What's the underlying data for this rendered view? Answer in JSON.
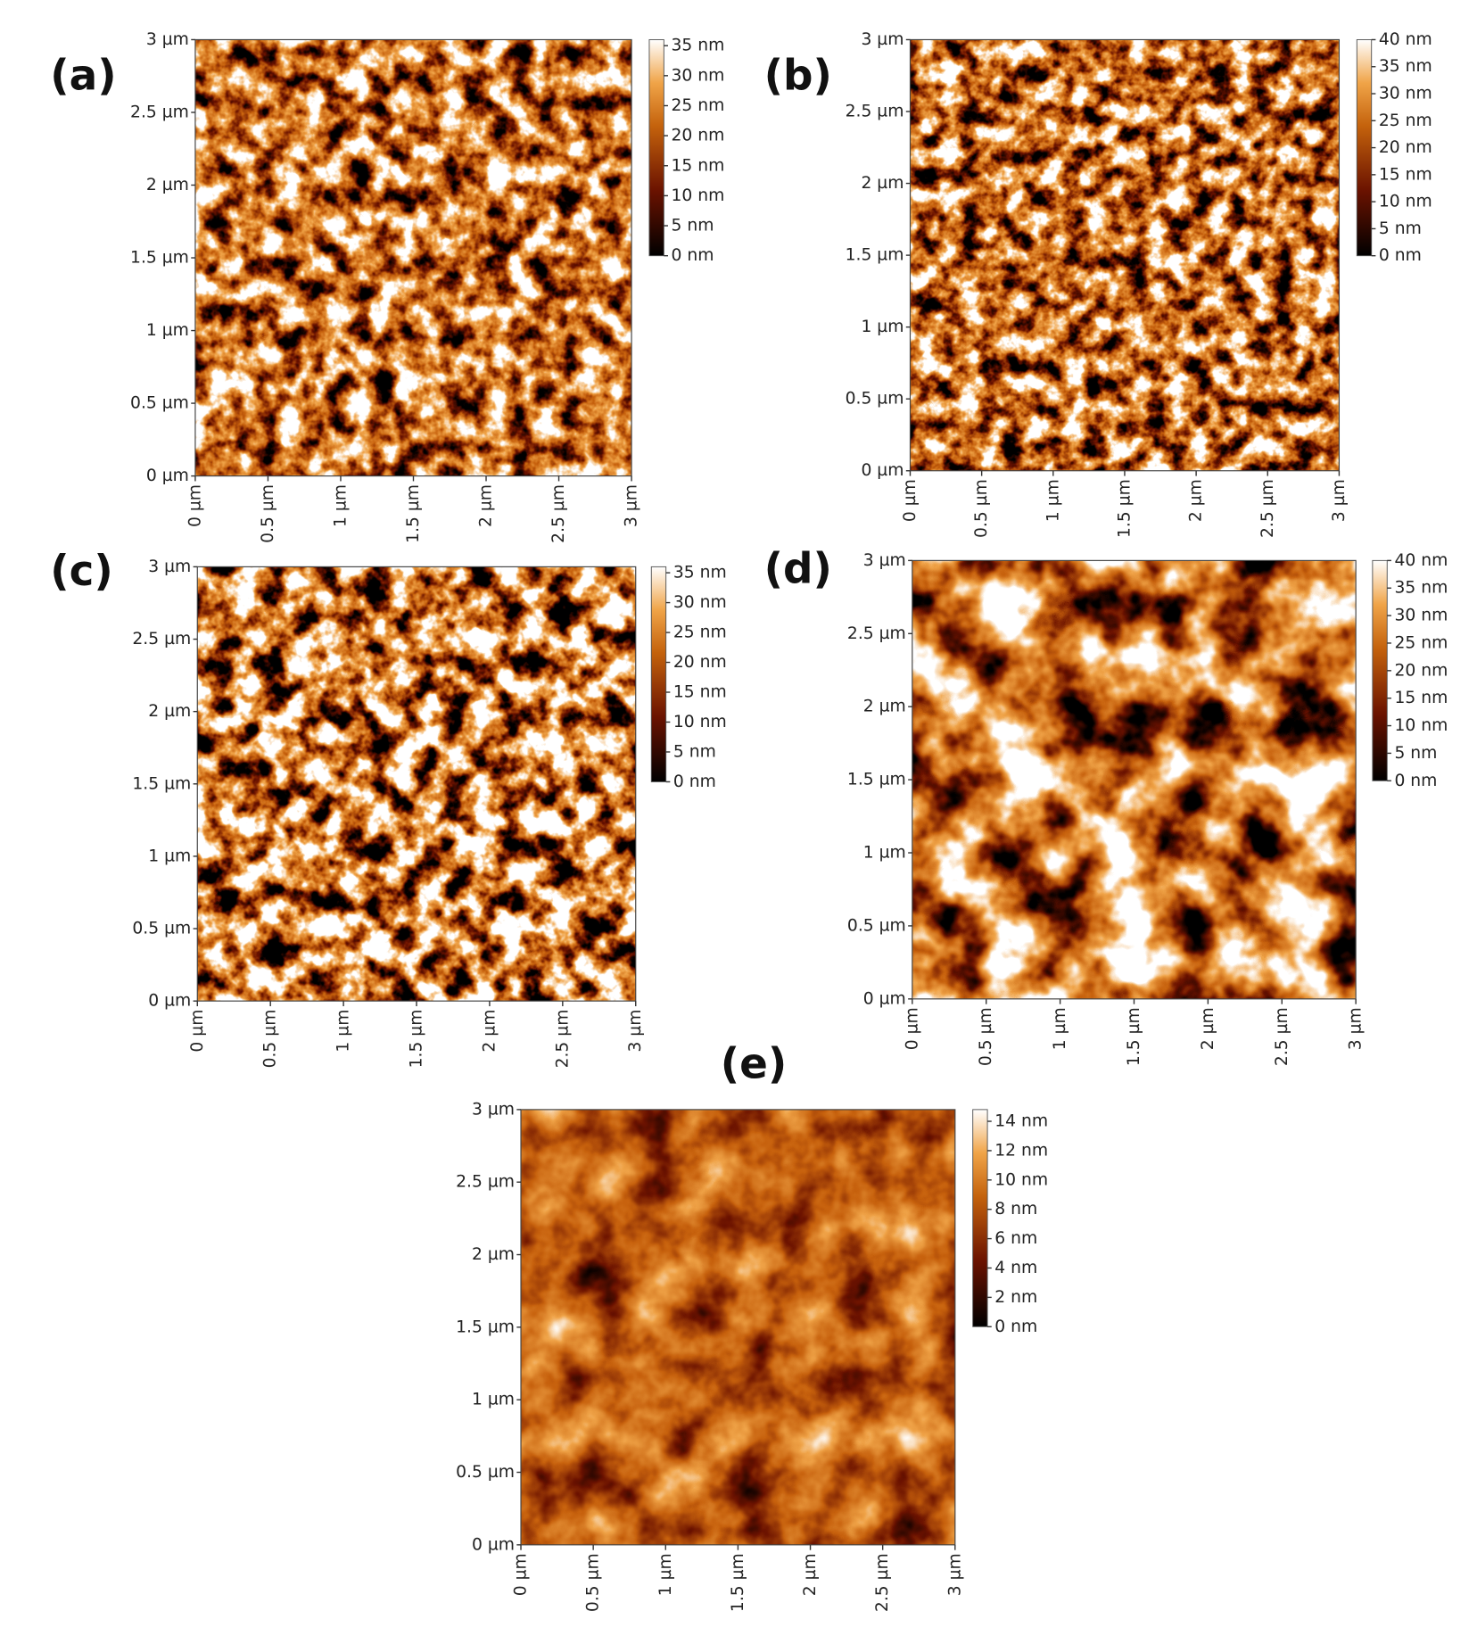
{
  "chart_data": [
    {
      "type": "heatmap",
      "label": "(a)",
      "xlim": [
        0,
        3
      ],
      "ylim": [
        0,
        3
      ],
      "xticks": [
        {
          "value": 0,
          "label": "0 µm"
        },
        {
          "value": 0.5,
          "label": "0.5 µm"
        },
        {
          "value": 1,
          "label": "1 µm"
        },
        {
          "value": 1.5,
          "label": "1.5 µm"
        },
        {
          "value": 2,
          "label": "2 µm"
        },
        {
          "value": 2.5,
          "label": "2.5 µm"
        },
        {
          "value": 3,
          "label": "3 µm"
        }
      ],
      "yticks": [
        {
          "value": 0,
          "label": "0 µm"
        },
        {
          "value": 0.5,
          "label": "0.5 µm"
        },
        {
          "value": 1,
          "label": "1 µm"
        },
        {
          "value": 1.5,
          "label": "1.5 µm"
        },
        {
          "value": 2,
          "label": "2 µm"
        },
        {
          "value": 2.5,
          "label": "2.5 µm"
        },
        {
          "value": 3,
          "label": "3 µm"
        }
      ],
      "clim": [
        0,
        36
      ],
      "cticks": [
        {
          "value": 0,
          "label": "0 nm"
        },
        {
          "value": 5,
          "label": "5 nm"
        },
        {
          "value": 10,
          "label": "10 nm"
        },
        {
          "value": 15,
          "label": "15 nm"
        },
        {
          "value": 20,
          "label": "20 nm"
        },
        {
          "value": 25,
          "label": "25 nm"
        },
        {
          "value": 30,
          "label": "30 nm"
        },
        {
          "value": 35,
          "label": "35 nm"
        }
      ]
    },
    {
      "type": "heatmap",
      "label": "(b)",
      "xlim": [
        0,
        3
      ],
      "ylim": [
        0,
        3
      ],
      "xticks": [
        {
          "value": 0,
          "label": "0 µm"
        },
        {
          "value": 0.5,
          "label": "0.5 µm"
        },
        {
          "value": 1,
          "label": "1 µm"
        },
        {
          "value": 1.5,
          "label": "1.5 µm"
        },
        {
          "value": 2,
          "label": "2 µm"
        },
        {
          "value": 2.5,
          "label": "2.5 µm"
        },
        {
          "value": 3,
          "label": "3 µm"
        }
      ],
      "yticks": [
        {
          "value": 0,
          "label": "0 µm"
        },
        {
          "value": 0.5,
          "label": "0.5 µm"
        },
        {
          "value": 1,
          "label": "1 µm"
        },
        {
          "value": 1.5,
          "label": "1.5 µm"
        },
        {
          "value": 2,
          "label": "2 µm"
        },
        {
          "value": 2.5,
          "label": "2.5 µm"
        },
        {
          "value": 3,
          "label": "3 µm"
        }
      ],
      "clim": [
        0,
        40
      ],
      "cticks": [
        {
          "value": 0,
          "label": "0 nm"
        },
        {
          "value": 5,
          "label": "5 nm"
        },
        {
          "value": 10,
          "label": "10 nm"
        },
        {
          "value": 15,
          "label": "15 nm"
        },
        {
          "value": 20,
          "label": "20 nm"
        },
        {
          "value": 25,
          "label": "25 nm"
        },
        {
          "value": 30,
          "label": "30 nm"
        },
        {
          "value": 35,
          "label": "35 nm"
        },
        {
          "value": 40,
          "label": "40 nm"
        }
      ]
    },
    {
      "type": "heatmap",
      "label": "(c)",
      "xlim": [
        0,
        3
      ],
      "ylim": [
        0,
        3
      ],
      "xticks": [
        {
          "value": 0,
          "label": "0 µm"
        },
        {
          "value": 0.5,
          "label": "0.5 µm"
        },
        {
          "value": 1,
          "label": "1 µm"
        },
        {
          "value": 1.5,
          "label": "1.5 µm"
        },
        {
          "value": 2,
          "label": "2 µm"
        },
        {
          "value": 2.5,
          "label": "2.5 µm"
        },
        {
          "value": 3,
          "label": "3 µm"
        }
      ],
      "yticks": [
        {
          "value": 0,
          "label": "0 µm"
        },
        {
          "value": 0.5,
          "label": "0.5 µm"
        },
        {
          "value": 1,
          "label": "1 µm"
        },
        {
          "value": 1.5,
          "label": "1.5 µm"
        },
        {
          "value": 2,
          "label": "2 µm"
        },
        {
          "value": 2.5,
          "label": "2.5 µm"
        },
        {
          "value": 3,
          "label": "3 µm"
        }
      ],
      "clim": [
        0,
        36
      ],
      "cticks": [
        {
          "value": 0,
          "label": "0 nm"
        },
        {
          "value": 5,
          "label": "5 nm"
        },
        {
          "value": 10,
          "label": "10 nm"
        },
        {
          "value": 15,
          "label": "15 nm"
        },
        {
          "value": 20,
          "label": "20 nm"
        },
        {
          "value": 25,
          "label": "25 nm"
        },
        {
          "value": 30,
          "label": "30 nm"
        },
        {
          "value": 35,
          "label": "35 nm"
        }
      ]
    },
    {
      "type": "heatmap",
      "label": "(d)",
      "xlim": [
        0,
        3
      ],
      "ylim": [
        0,
        3
      ],
      "xticks": [
        {
          "value": 0,
          "label": "0 µm"
        },
        {
          "value": 0.5,
          "label": "0.5 µm"
        },
        {
          "value": 1,
          "label": "1 µm"
        },
        {
          "value": 1.5,
          "label": "1.5 µm"
        },
        {
          "value": 2,
          "label": "2 µm"
        },
        {
          "value": 2.5,
          "label": "2.5 µm"
        },
        {
          "value": 3,
          "label": "3 µm"
        }
      ],
      "yticks": [
        {
          "value": 0,
          "label": "0 µm"
        },
        {
          "value": 0.5,
          "label": "0.5 µm"
        },
        {
          "value": 1,
          "label": "1 µm"
        },
        {
          "value": 1.5,
          "label": "1.5 µm"
        },
        {
          "value": 2,
          "label": "2 µm"
        },
        {
          "value": 2.5,
          "label": "2.5 µm"
        },
        {
          "value": 3,
          "label": "3 µm"
        }
      ],
      "clim": [
        0,
        40
      ],
      "cticks": [
        {
          "value": 0,
          "label": "0 nm"
        },
        {
          "value": 5,
          "label": "5 nm"
        },
        {
          "value": 10,
          "label": "10 nm"
        },
        {
          "value": 15,
          "label": "15 nm"
        },
        {
          "value": 20,
          "label": "20 nm"
        },
        {
          "value": 25,
          "label": "25 nm"
        },
        {
          "value": 30,
          "label": "30 nm"
        },
        {
          "value": 35,
          "label": "35 nm"
        },
        {
          "value": 40,
          "label": "40 nm"
        }
      ]
    },
    {
      "type": "heatmap",
      "label": "(e)",
      "xlim": [
        0,
        3
      ],
      "ylim": [
        0,
        3
      ],
      "xticks": [
        {
          "value": 0,
          "label": "0 µm"
        },
        {
          "value": 0.5,
          "label": "0.5 µm"
        },
        {
          "value": 1,
          "label": "1 µm"
        },
        {
          "value": 1.5,
          "label": "1.5 µm"
        },
        {
          "value": 2,
          "label": "2 µm"
        },
        {
          "value": 2.5,
          "label": "2.5 µm"
        },
        {
          "value": 3,
          "label": "3 µm"
        }
      ],
      "yticks": [
        {
          "value": 0,
          "label": "0 µm"
        },
        {
          "value": 0.5,
          "label": "0.5 µm"
        },
        {
          "value": 1,
          "label": "1 µm"
        },
        {
          "value": 1.5,
          "label": "1.5 µm"
        },
        {
          "value": 2,
          "label": "2 µm"
        },
        {
          "value": 2.5,
          "label": "2.5 µm"
        },
        {
          "value": 3,
          "label": "3 µm"
        }
      ],
      "clim": [
        0,
        14.8
      ],
      "cticks": [
        {
          "value": 0,
          "label": "0 nm"
        },
        {
          "value": 2,
          "label": "2 nm"
        },
        {
          "value": 4,
          "label": "4 nm"
        },
        {
          "value": 6,
          "label": "6 nm"
        },
        {
          "value": 8,
          "label": "8 nm"
        },
        {
          "value": 10,
          "label": "10 nm"
        },
        {
          "value": 12,
          "label": "12 nm"
        },
        {
          "value": 14,
          "label": "14 nm"
        }
      ]
    }
  ]
}
